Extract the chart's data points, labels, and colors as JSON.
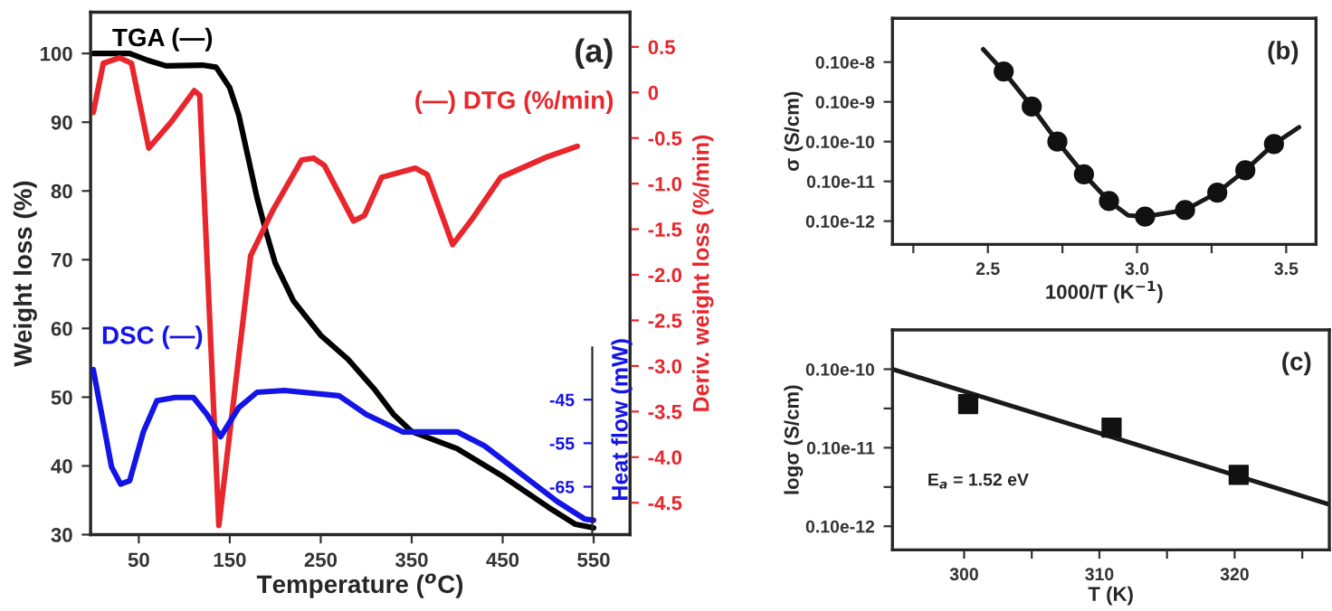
{
  "chart_data": [
    {
      "type": "line",
      "xlabel": "Temperature ($^{o}$C)",
      "ylabel": "Weight loss (%)",
      "y2label": "Deriv. weight loss (%/min)",
      "y3label": "Heat flow (mW)",
      "annotations": [
        "(a)"
      ],
      "xlim": [
        -3,
        590
      ],
      "xticks": [
        50,
        150,
        250,
        350,
        450,
        550
      ],
      "ylim": [
        30,
        106
      ],
      "yticks": [
        30,
        40,
        50,
        60,
        70,
        80,
        90,
        100
      ],
      "y2lim": [
        -4.85,
        0.88
      ],
      "y2ticks": [
        0.5,
        0,
        -0.5,
        {
          "value": -1,
          "label": "-1.0"
        },
        -1.5,
        {
          "value": -2,
          "label": "-2.0"
        },
        -2.5,
        {
          "value": -3,
          "label": "-3.0"
        },
        -3.5,
        {
          "value": -4,
          "label": "-4.0"
        },
        -4.5
      ],
      "y3lim": [
        -76,
        44
      ],
      "y3ticks": [
        -45,
        -55,
        -65
      ],
      "legend": false,
      "grid": false,
      "series": [
        {
          "name": "TGA (—)",
          "color": "#000000",
          "x": [
            0,
            40,
            60,
            80,
            120,
            135,
            150,
            160,
            170,
            180,
            190,
            200,
            220,
            250,
            280,
            310,
            330,
            350,
            400,
            450,
            500,
            530,
            550
          ],
          "values": [
            100,
            100,
            99,
            98.2,
            98.3,
            98,
            95,
            91,
            85,
            79,
            74,
            69.5,
            64,
            59,
            55.5,
            51,
            47.5,
            45,
            42.5,
            38.5,
            34,
            31.5,
            31
          ]
        },
        {
          "name": "(—) DTG (%/min)",
          "color": "#e8262c",
          "axis": "y2",
          "x": [
            0,
            11,
            29,
            42,
            61,
            86,
            111,
            117,
            138,
            173,
            198,
            229,
            242,
            254,
            286,
            298,
            317,
            354,
            367,
            395,
            417,
            448,
            498,
            532
          ],
          "values": [
            -0.22,
            0.32,
            0.38,
            0.32,
            -0.61,
            -0.32,
            0.02,
            -0.03,
            -4.75,
            -1.79,
            -1.28,
            -0.74,
            -0.72,
            -0.8,
            -1.41,
            -1.35,
            -0.93,
            -0.83,
            -0.9,
            -1.67,
            -1.38,
            -0.93,
            -0.71,
            -0.59
          ]
        },
        {
          "name": "DSC (—)",
          "color": "#1414e6",
          "axis": "y3",
          "x": [
            0,
            10,
            20,
            30,
            40,
            55,
            70,
            90,
            110,
            125,
            140,
            160,
            180,
            210,
            270,
            300,
            340,
            400,
            430,
            470,
            510,
            540,
            550
          ],
          "values": [
            -38.1,
            -49.2,
            -60.4,
            -64.4,
            -63.6,
            -52.4,
            -45.2,
            -44.5,
            -44.5,
            -48.4,
            -53.5,
            -46.8,
            -43.3,
            -42.9,
            -44.1,
            -48.4,
            -52.4,
            -52.4,
            -55.6,
            -62,
            -68.4,
            -72.4,
            -72.7
          ]
        }
      ]
    },
    {
      "type": "scatter",
      "xlabel": "1000/T (K$^{−1}$)",
      "ylabel": "σ (S/cm)",
      "annotations": [
        "(b)"
      ],
      "log": true,
      "marker": "circle",
      "xlim": [
        2.18,
        3.6
      ],
      "xticks": [
        {
          "value": 2.25,
          "label": null
        },
        2.5,
        {
          "value": 2.75,
          "label": null
        },
        {
          "value": 3.0,
          "label": "3.0"
        },
        {
          "value": 3.25,
          "label": null
        },
        3.5
      ],
      "ylim": [
        2.6e-14,
        1.26e-08
      ],
      "yticks": [
        {
          "value": 1e-09,
          "label": "0.10e-8"
        },
        {
          "value": 1e-10,
          "label": "0.10e-9"
        },
        {
          "value": 1e-11,
          "label": "0.10e-10"
        },
        {
          "value": 1e-12,
          "label": "0.10e-11"
        },
        {
          "value": 1e-13,
          "label": "0.10e-12"
        }
      ],
      "legend": false,
      "grid": false,
      "series": [
        {
          "type": "line",
          "marker": "none",
          "color": "#1a1a1a",
          "x": [
            2.484,
            2.553,
            2.647,
            2.733,
            2.822,
            2.906,
            2.97,
            3.027,
            3.161,
            3.269,
            3.363,
            3.459,
            3.543
          ],
          "values": [
            2.1e-09,
            5.8e-10,
            7.6e-11,
            1e-11,
            1.5e-12,
            3.2e-13,
            1.4e-13,
            1.3e-13,
            1.9e-13,
            5.2e-13,
            1.9e-12,
            8.7e-12,
            2.3e-11
          ]
        },
        {
          "type": "scatter",
          "color": "#111111",
          "x": [
            2.553,
            2.647,
            2.733,
            2.822,
            2.906,
            3.027,
            3.161,
            3.269,
            3.363,
            3.459
          ],
          "values": [
            5.8e-10,
            7.6e-11,
            1e-11,
            1.5e-12,
            3.2e-13,
            1.3e-13,
            1.9e-13,
            5.2e-13,
            1.9e-12,
            8.7e-12
          ]
        }
      ]
    },
    {
      "type": "scatter",
      "xlabel": "T (K)",
      "ylabel": "logσ (S/cm)",
      "annotations": [
        "(c)",
        "E$_{a}$ = 1.52 eV"
      ],
      "log": true,
      "marker": "square",
      "xlim": [
        294.7,
        327
      ],
      "xticks": [
        300,
        {
          "value": 305,
          "label": null
        },
        310,
        {
          "value": 315,
          "label": null
        },
        320,
        {
          "value": 325,
          "label": null
        }
      ],
      "ylim": [
        5e-14,
        3.16e-11
      ],
      "yticks": [
        {
          "value": 1e-11,
          "label": "0.10e-10"
        },
        {
          "value": 3.16e-12,
          "label": null
        },
        {
          "value": 1e-12,
          "label": "0.10e-11"
        },
        {
          "value": 3.16e-13,
          "label": null
        },
        {
          "value": 1e-13,
          "label": "0.10e-12"
        }
      ],
      "legend": false,
      "grid": false,
      "series": [
        {
          "type": "line",
          "marker": "none",
          "color": "#1a1a1a",
          "x": [
            294.7,
            327
          ],
          "values": [
            1e-11,
            1.9e-13
          ]
        },
        {
          "type": "scatter",
          "color": "#111111",
          "x": [
            300.3,
            310.9,
            320.3
          ],
          "values": [
            3.6e-12,
            1.8e-12,
            4.5e-13
          ]
        }
      ]
    }
  ]
}
